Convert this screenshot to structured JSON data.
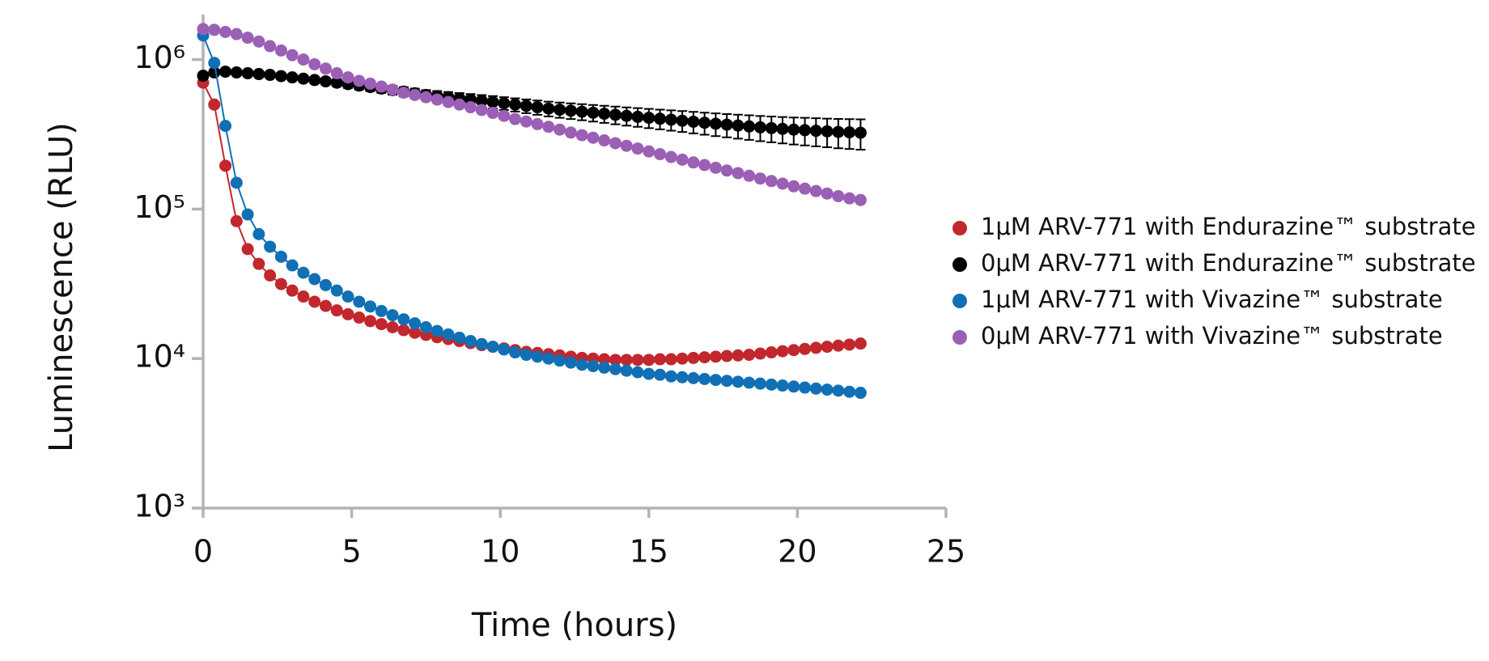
{
  "chart_data": {
    "type": "line",
    "log_y": true,
    "xlabel": "Time (hours)",
    "ylabel": "Luminescence (RLU)",
    "xlim": [
      0,
      25
    ],
    "xticks": [
      0,
      5,
      10,
      15,
      20,
      25
    ],
    "ylim": [
      1000,
      2000000
    ],
    "yticks": [
      {
        "value": 1000,
        "label": "10³"
      },
      {
        "value": 10000,
        "label": "10⁴"
      },
      {
        "value": 100000,
        "label": "10⁵"
      },
      {
        "value": 1000000,
        "label": "10⁶"
      }
    ],
    "legend": "right",
    "x": [
      0,
      0.375,
      0.75,
      1.125,
      1.5,
      1.875,
      2.25,
      2.625,
      3,
      3.375,
      3.75,
      4.125,
      4.5,
      4.875,
      5.25,
      5.625,
      6,
      6.375,
      6.75,
      7.125,
      7.5,
      7.875,
      8.25,
      8.625,
      9,
      9.375,
      9.75,
      10.125,
      10.5,
      10.875,
      11.25,
      11.625,
      12,
      12.375,
      12.75,
      13.125,
      13.5,
      13.875,
      14.25,
      14.625,
      15,
      15.375,
      15.75,
      16.125,
      16.5,
      16.875,
      17.25,
      17.625,
      18,
      18.375,
      18.75,
      19.125,
      19.5,
      19.875,
      20.25,
      20.625,
      21,
      21.375,
      21.75,
      22.125
    ],
    "series": [
      {
        "name": "1μM ARV-771 with Endurazine™ substrate",
        "color": "#c1272d",
        "values": [
          700000,
          500000,
          195000,
          83000,
          54000,
          43000,
          36000,
          31500,
          28500,
          26000,
          24000,
          22500,
          21000,
          19800,
          18800,
          17800,
          17000,
          16200,
          15500,
          14900,
          14400,
          13900,
          13500,
          13100,
          12700,
          12300,
          12000,
          11700,
          11400,
          11100,
          10900,
          10700,
          10500,
          10300,
          10100,
          10000,
          9900,
          9800,
          9800,
          9800,
          9800,
          9900,
          9900,
          10000,
          10100,
          10200,
          10300,
          10400,
          10500,
          10600,
          10800,
          11000,
          11200,
          11400,
          11600,
          11800,
          12000,
          12200,
          12400,
          12600
        ]
      },
      {
        "name": "0μM ARV-771 with Endurazine™ substrate",
        "color": "#000000",
        "values": [
          780000,
          820000,
          830000,
          820000,
          810000,
          800000,
          790000,
          775000,
          760000,
          745000,
          730000,
          715000,
          700000,
          685000,
          670000,
          655000,
          640000,
          625000,
          610000,
          595000,
          580000,
          570000,
          560000,
          550000,
          540000,
          530000,
          520000,
          510000,
          500000,
          490000,
          480000,
          470000,
          462000,
          455000,
          448000,
          441000,
          434000,
          427000,
          420000,
          414000,
          408000,
          402000,
          396000,
          390000,
          384000,
          378000,
          372000,
          367000,
          362000,
          357000,
          352000,
          348000,
          344000,
          340000,
          337000,
          334000,
          331000,
          328000,
          326000,
          324000
        ],
        "errors": [
          30000,
          30750,
          31500,
          32250,
          33000,
          33750,
          34500,
          35250,
          36000,
          36750,
          37500,
          38250,
          39000,
          39750,
          40500,
          41250,
          42000,
          42750,
          43500,
          44250,
          45000,
          45750,
          46500,
          47250,
          48000,
          48750,
          49500,
          50250,
          51000,
          51750,
          52500,
          53250,
          54000,
          54750,
          55500,
          56250,
          57000,
          57750,
          58500,
          59250,
          60000,
          60750,
          61500,
          62250,
          63000,
          63750,
          64500,
          65250,
          66000,
          66750,
          67500,
          68250,
          69000,
          69750,
          70500,
          71250,
          72000,
          72750,
          73500,
          74250
        ]
      },
      {
        "name": "1μM ARV-771 with Vivazine™ substrate",
        "color": "#1170b5",
        "values": [
          1450000,
          950000,
          360000,
          150000,
          92000,
          68000,
          56000,
          48000,
          42000,
          37500,
          34000,
          31000,
          28500,
          26000,
          24000,
          22300,
          20800,
          19500,
          18300,
          17200,
          16200,
          15300,
          14500,
          13800,
          13100,
          12500,
          12000,
          11500,
          11000,
          10600,
          10300,
          10000,
          9700,
          9400,
          9100,
          8900,
          8700,
          8500,
          8300,
          8100,
          7900,
          7800,
          7600,
          7500,
          7400,
          7300,
          7200,
          7100,
          7000,
          6900,
          6800,
          6700,
          6600,
          6500,
          6400,
          6300,
          6200,
          6100,
          6000,
          5900
        ]
      },
      {
        "name": "0μM ARV-771 with Vivazine™ substrate",
        "color": "#9b5fb5",
        "values": [
          1600000,
          1580000,
          1530000,
          1480000,
          1400000,
          1320000,
          1230000,
          1150000,
          1070000,
          1000000,
          930000,
          870000,
          810000,
          760000,
          720000,
          690000,
          660000,
          630000,
          600000,
          580000,
          560000,
          540000,
          520000,
          500000,
          480000,
          460000,
          440000,
          420000,
          400000,
          385000,
          370000,
          355000,
          340000,
          325000,
          312000,
          300000,
          288000,
          276000,
          265000,
          254000,
          243000,
          233000,
          223000,
          214000,
          205000,
          197000,
          189000,
          181000,
          174000,
          167000,
          160000,
          154000,
          148000,
          142000,
          137000,
          132000,
          127000,
          122000,
          118000,
          115000
        ]
      }
    ]
  }
}
